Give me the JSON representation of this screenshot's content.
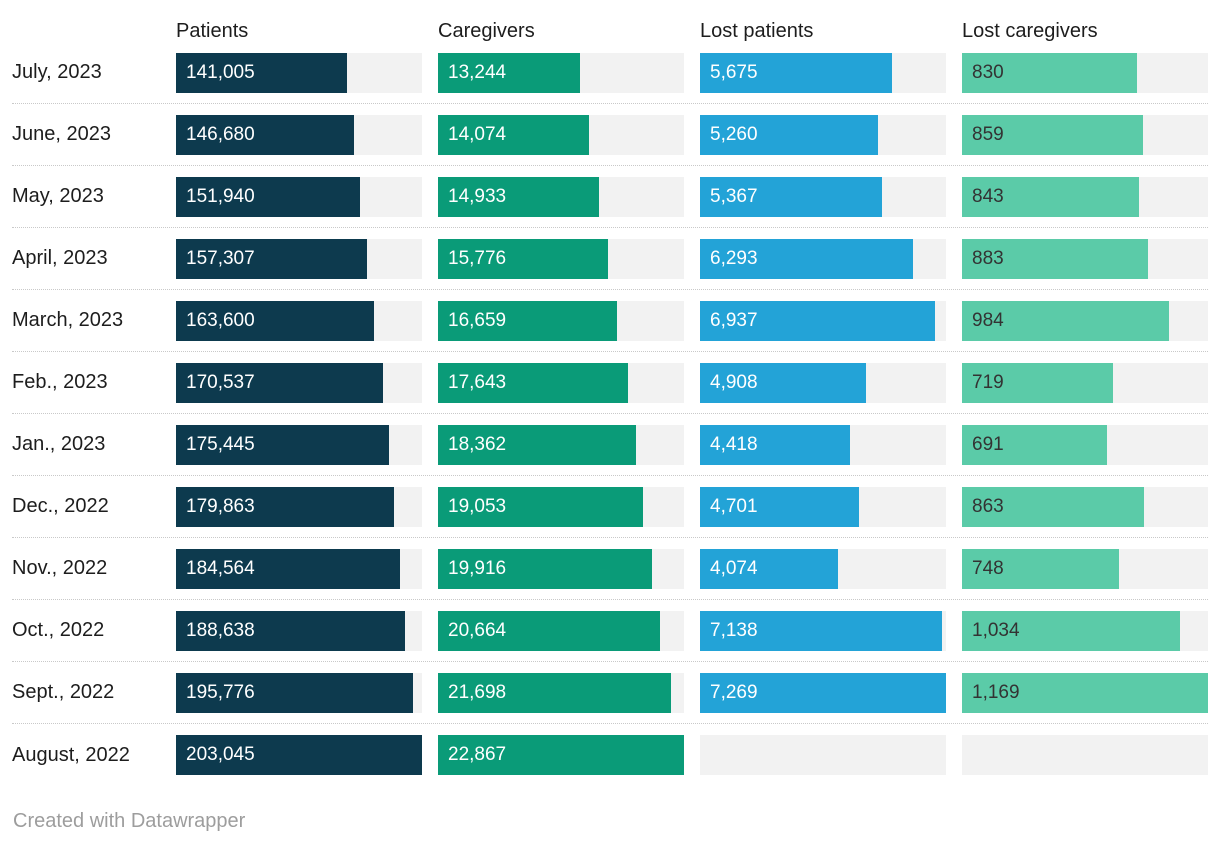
{
  "footer": {
    "credit": "Created with Datawrapper"
  },
  "colors": {
    "background": "#ffffff",
    "track": "#f2f2f2",
    "row_separator": "#c9c9c9",
    "header_text": "#1d1d1d",
    "row_label_text": "#1d1d1d",
    "credit_text": "#9d9d9d"
  },
  "chart_data": {
    "type": "bar",
    "layout": "bar-column-table",
    "title": "",
    "legend_position": "none",
    "grid": "dotted-row-separators",
    "track_color": "#f2f2f2",
    "categories": [
      "July, 2023",
      "June, 2023",
      "May, 2023",
      "April, 2023",
      "March, 2023",
      "Feb., 2023",
      "Jan., 2023",
      "Dec., 2022",
      "Nov., 2022",
      "Oct., 2022",
      "Sept., 2022",
      "August, 2022"
    ],
    "series": [
      {
        "name": "Patients",
        "color": "#0d3a4e",
        "label_color": "#ffffff",
        "axis_max": 203045,
        "values": [
          141005,
          146680,
          151940,
          157307,
          163600,
          170537,
          175445,
          179863,
          184564,
          188638,
          195776,
          203045
        ],
        "labels": [
          "141,005",
          "146,680",
          "151,940",
          "157,307",
          "163,600",
          "170,537",
          "175,445",
          "179,863",
          "184,564",
          "188,638",
          "195,776",
          "203,045"
        ]
      },
      {
        "name": "Caregivers",
        "color": "#0a9b78",
        "label_color": "#ffffff",
        "axis_max": 22867,
        "values": [
          13244,
          14074,
          14933,
          15776,
          16659,
          17643,
          18362,
          19053,
          19916,
          20664,
          21698,
          22867
        ],
        "labels": [
          "13,244",
          "14,074",
          "14,933",
          "15,776",
          "16,659",
          "17,643",
          "18,362",
          "19,053",
          "19,916",
          "20,664",
          "21,698",
          "22,867"
        ]
      },
      {
        "name": "Lost patients",
        "color": "#23a3d7",
        "label_color": "#ffffff",
        "axis_max": 7269,
        "values": [
          5675,
          5260,
          5367,
          6293,
          6937,
          4908,
          4418,
          4701,
          4074,
          7138,
          7269,
          null
        ],
        "labels": [
          "5,675",
          "5,260",
          "5,367",
          "6,293",
          "6,937",
          "4,908",
          "4,418",
          "4,701",
          "4,074",
          "7,138",
          "7,269",
          null
        ]
      },
      {
        "name": "Lost caregivers",
        "color": "#5bcba8",
        "label_color": "#333333",
        "axis_max": 1169,
        "values": [
          830,
          859,
          843,
          883,
          984,
          719,
          691,
          863,
          748,
          1034,
          1169,
          null
        ],
        "labels": [
          "830",
          "859",
          "843",
          "883",
          "984",
          "719",
          "691",
          "863",
          "748",
          "1,034",
          "1,169",
          null
        ]
      }
    ]
  }
}
